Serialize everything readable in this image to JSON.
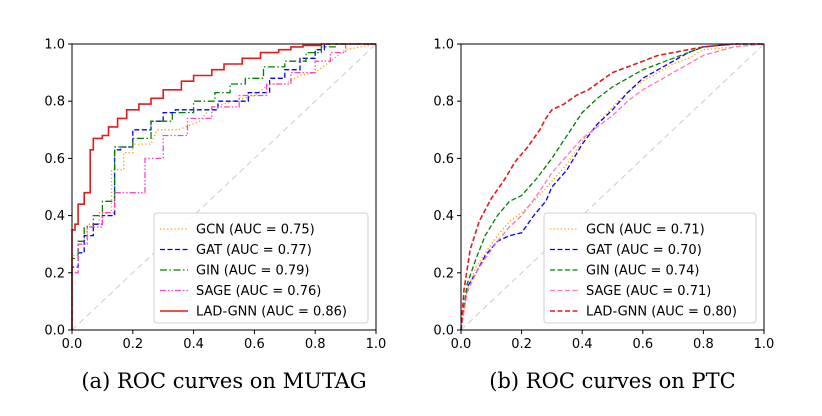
{
  "chart_data": [
    {
      "type": "line",
      "caption": "(a) ROC curves on MUTAG",
      "xlim": [
        0.0,
        1.0
      ],
      "ylim": [
        0.0,
        1.0
      ],
      "xticks": [
        "0.0",
        "0.2",
        "0.4",
        "0.6",
        "0.8",
        "1.0"
      ],
      "yticks": [
        "0.0",
        "0.2",
        "0.4",
        "0.6",
        "0.8",
        "1.0"
      ],
      "grid": false,
      "legend_position": "lower-right",
      "reference_line": {
        "x": [
          0,
          1
        ],
        "y": [
          0,
          1
        ],
        "color": "#cccccc",
        "style": "dashed"
      },
      "series": [
        {
          "name": "GCN (AUC = 0.75)",
          "color": "#ff9900",
          "style": "dotted",
          "x": [
            0,
            0,
            0.02,
            0.02,
            0.05,
            0.05,
            0.09,
            0.09,
            0.13,
            0.13,
            0.17,
            0.17,
            0.2,
            0.2,
            0.26,
            0.28,
            0.35,
            0.42,
            0.45,
            0.47,
            0.53,
            0.6,
            0.65,
            0.7,
            0.75,
            0.8,
            0.85,
            0.9,
            1.0
          ],
          "y": [
            0,
            0.26,
            0.26,
            0.3,
            0.3,
            0.37,
            0.37,
            0.41,
            0.41,
            0.56,
            0.56,
            0.62,
            0.62,
            0.65,
            0.65,
            0.7,
            0.7,
            0.73,
            0.77,
            0.78,
            0.8,
            0.82,
            0.86,
            0.86,
            0.89,
            0.9,
            0.94,
            0.98,
            1.0
          ]
        },
        {
          "name": "GAT (AUC = 0.77)",
          "color": "#0000ff",
          "style": "dashed",
          "x": [
            0,
            0,
            0.02,
            0.02,
            0.04,
            0.04,
            0.07,
            0.07,
            0.1,
            0.1,
            0.14,
            0.14,
            0.16,
            0.16,
            0.2,
            0.2,
            0.26,
            0.26,
            0.3,
            0.3,
            0.34,
            0.34,
            0.48,
            0.48,
            0.58,
            0.58,
            0.65,
            0.65,
            0.7,
            0.7,
            0.75,
            0.75,
            0.8,
            0.8,
            0.83,
            0.83,
            1.0
          ],
          "y": [
            0,
            0.22,
            0.22,
            0.27,
            0.27,
            0.33,
            0.33,
            0.37,
            0.37,
            0.4,
            0.4,
            0.63,
            0.63,
            0.64,
            0.64,
            0.7,
            0.7,
            0.73,
            0.73,
            0.76,
            0.76,
            0.77,
            0.77,
            0.8,
            0.8,
            0.83,
            0.83,
            0.88,
            0.88,
            0.91,
            0.91,
            0.95,
            0.95,
            0.98,
            0.98,
            1.0,
            1.0
          ]
        },
        {
          "name": "GIN (AUC = 0.79)",
          "color": "#008000",
          "style": "dashdot",
          "x": [
            0,
            0,
            0.02,
            0.02,
            0.04,
            0.04,
            0.07,
            0.07,
            0.1,
            0.1,
            0.14,
            0.14,
            0.2,
            0.2,
            0.26,
            0.26,
            0.33,
            0.33,
            0.4,
            0.4,
            0.47,
            0.47,
            0.52,
            0.52,
            0.57,
            0.57,
            0.63,
            0.63,
            0.7,
            0.7,
            0.77,
            0.77,
            0.82,
            0.82,
            0.87,
            0.87,
            1.0
          ],
          "y": [
            0,
            0.25,
            0.25,
            0.31,
            0.31,
            0.36,
            0.36,
            0.4,
            0.4,
            0.45,
            0.45,
            0.64,
            0.64,
            0.67,
            0.67,
            0.73,
            0.73,
            0.76,
            0.76,
            0.8,
            0.8,
            0.83,
            0.83,
            0.86,
            0.86,
            0.88,
            0.88,
            0.92,
            0.92,
            0.94,
            0.94,
            0.97,
            0.97,
            0.99,
            0.99,
            1.0,
            1.0
          ]
        },
        {
          "name": "SAGE (AUC = 0.76)",
          "color": "#ff44cc",
          "style": "dashdotdot",
          "x": [
            0,
            0,
            0.02,
            0.02,
            0.05,
            0.05,
            0.1,
            0.1,
            0.14,
            0.14,
            0.24,
            0.24,
            0.3,
            0.3,
            0.38,
            0.38,
            0.46,
            0.46,
            0.55,
            0.55,
            0.64,
            0.64,
            0.72,
            0.72,
            0.8,
            0.8,
            0.85,
            0.85,
            0.9,
            0.9,
            1.0
          ],
          "y": [
            0,
            0.2,
            0.2,
            0.3,
            0.3,
            0.36,
            0.36,
            0.41,
            0.41,
            0.48,
            0.48,
            0.6,
            0.6,
            0.68,
            0.68,
            0.74,
            0.74,
            0.78,
            0.78,
            0.82,
            0.82,
            0.86,
            0.86,
            0.9,
            0.9,
            0.94,
            0.94,
            0.97,
            0.97,
            1.0,
            1.0
          ]
        },
        {
          "name": "LAD-GNN (AUC = 0.86)",
          "color": "#e41a1c",
          "style": "solid",
          "x": [
            0,
            0,
            0.01,
            0.01,
            0.02,
            0.02,
            0.04,
            0.04,
            0.06,
            0.06,
            0.07,
            0.07,
            0.1,
            0.1,
            0.12,
            0.12,
            0.15,
            0.15,
            0.18,
            0.18,
            0.22,
            0.22,
            0.26,
            0.26,
            0.3,
            0.3,
            0.36,
            0.36,
            0.4,
            0.4,
            0.46,
            0.46,
            0.5,
            0.5,
            0.56,
            0.56,
            0.62,
            0.62,
            0.68,
            0.68,
            0.72,
            0.72,
            0.76,
            0.76,
            0.82,
            0.82,
            1.0
          ],
          "y": [
            0,
            0.35,
            0.35,
            0.37,
            0.37,
            0.44,
            0.44,
            0.48,
            0.48,
            0.63,
            0.63,
            0.67,
            0.67,
            0.68,
            0.68,
            0.71,
            0.71,
            0.74,
            0.74,
            0.77,
            0.77,
            0.79,
            0.79,
            0.81,
            0.81,
            0.84,
            0.84,
            0.87,
            0.87,
            0.89,
            0.89,
            0.91,
            0.91,
            0.93,
            0.93,
            0.95,
            0.95,
            0.97,
            0.97,
            0.98,
            0.98,
            0.99,
            0.99,
            0.995,
            0.995,
            1.0,
            1.0
          ]
        }
      ]
    },
    {
      "type": "line",
      "caption": "(b) ROC curves on PTC",
      "xlim": [
        0.0,
        1.0
      ],
      "ylim": [
        0.0,
        1.0
      ],
      "xticks": [
        "0.0",
        "0.2",
        "0.4",
        "0.6",
        "0.8",
        "1.0"
      ],
      "yticks": [
        "0.0",
        "0.2",
        "0.4",
        "0.6",
        "0.8",
        "1.0"
      ],
      "grid": false,
      "legend_position": "lower-right",
      "reference_line": {
        "x": [
          0,
          1
        ],
        "y": [
          0,
          1
        ],
        "color": "#cccccc",
        "style": "dashed"
      },
      "series": [
        {
          "name": "GCN (AUC = 0.71)",
          "color": "#ff9900",
          "style": "dotted",
          "x": [
            0,
            0.02,
            0.05,
            0.08,
            0.12,
            0.16,
            0.2,
            0.25,
            0.3,
            0.35,
            0.4,
            0.45,
            0.5,
            0.55,
            0.6,
            0.65,
            0.7,
            0.75,
            0.8,
            0.9,
            1.0
          ],
          "y": [
            0,
            0.14,
            0.22,
            0.27,
            0.33,
            0.38,
            0.41,
            0.46,
            0.52,
            0.58,
            0.66,
            0.72,
            0.78,
            0.83,
            0.87,
            0.9,
            0.93,
            0.95,
            0.98,
            0.99,
            1.0
          ]
        },
        {
          "name": "GAT (AUC = 0.70)",
          "color": "#0000ff",
          "style": "dashed",
          "x": [
            0,
            0.02,
            0.05,
            0.08,
            0.12,
            0.16,
            0.2,
            0.24,
            0.28,
            0.3,
            0.35,
            0.4,
            0.45,
            0.5,
            0.55,
            0.6,
            0.65,
            0.7,
            0.75,
            0.8,
            0.9,
            1.0
          ],
          "y": [
            0,
            0.15,
            0.2,
            0.26,
            0.31,
            0.33,
            0.34,
            0.4,
            0.45,
            0.5,
            0.56,
            0.65,
            0.72,
            0.77,
            0.83,
            0.88,
            0.91,
            0.94,
            0.97,
            0.99,
            1.0,
            1.0
          ]
        },
        {
          "name": "GIN (AUC = 0.74)",
          "color": "#008000",
          "style": "dashed",
          "x": [
            0,
            0.02,
            0.05,
            0.08,
            0.12,
            0.16,
            0.2,
            0.25,
            0.3,
            0.35,
            0.4,
            0.45,
            0.5,
            0.55,
            0.6,
            0.65,
            0.7,
            0.75,
            0.8,
            0.9,
            1.0
          ],
          "y": [
            0,
            0.16,
            0.25,
            0.33,
            0.4,
            0.45,
            0.47,
            0.53,
            0.6,
            0.68,
            0.76,
            0.81,
            0.85,
            0.88,
            0.91,
            0.93,
            0.95,
            0.97,
            0.99,
            1.0,
            1.0
          ]
        },
        {
          "name": "SAGE (AUC = 0.71)",
          "color": "#ff77bb",
          "style": "dashed",
          "x": [
            0,
            0.02,
            0.05,
            0.08,
            0.12,
            0.16,
            0.2,
            0.25,
            0.3,
            0.35,
            0.4,
            0.45,
            0.5,
            0.55,
            0.6,
            0.65,
            0.7,
            0.75,
            0.8,
            0.9,
            1.0
          ],
          "y": [
            0,
            0.13,
            0.2,
            0.25,
            0.31,
            0.36,
            0.4,
            0.47,
            0.55,
            0.61,
            0.67,
            0.71,
            0.75,
            0.8,
            0.84,
            0.87,
            0.9,
            0.93,
            0.96,
            0.99,
            1.0
          ]
        },
        {
          "name": "LAD-GNN (AUC = 0.80)",
          "color": "#e41a1c",
          "style": "dashed",
          "x": [
            0,
            0.01,
            0.03,
            0.06,
            0.1,
            0.14,
            0.18,
            0.22,
            0.26,
            0.28,
            0.3,
            0.34,
            0.38,
            0.42,
            0.46,
            0.5,
            0.55,
            0.6,
            0.65,
            0.7,
            0.75,
            0.8,
            0.9,
            1.0
          ],
          "y": [
            0,
            0.14,
            0.28,
            0.38,
            0.46,
            0.52,
            0.59,
            0.64,
            0.7,
            0.74,
            0.77,
            0.79,
            0.82,
            0.84,
            0.87,
            0.9,
            0.92,
            0.94,
            0.96,
            0.97,
            0.98,
            0.99,
            1.0,
            1.0
          ]
        }
      ]
    }
  ]
}
